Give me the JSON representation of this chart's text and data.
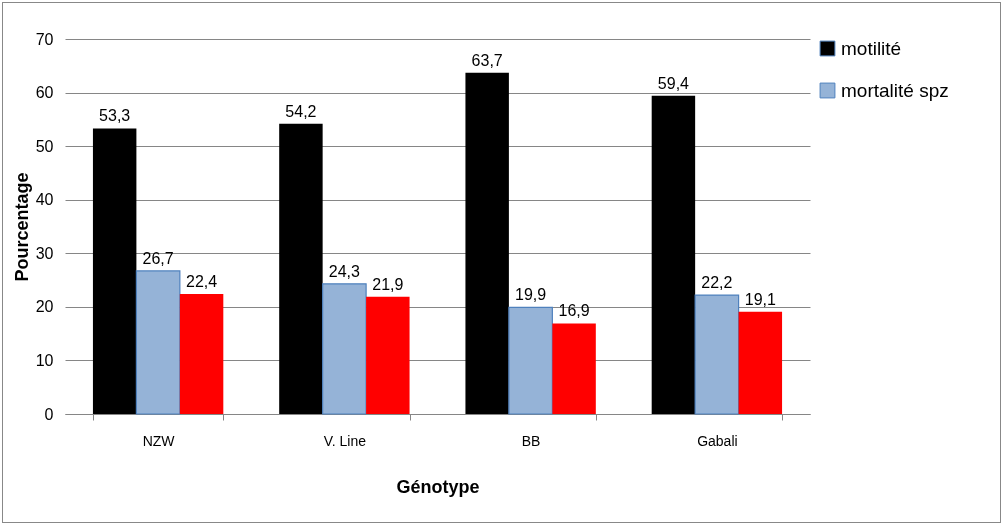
{
  "chart_data": {
    "type": "bar",
    "xlabel": "Génotype",
    "ylabel": "Pourcentage",
    "categories": [
      "NZW",
      "V. Line",
      "BB",
      "Gabali"
    ],
    "series": [
      {
        "name": "motilité",
        "color": "#000000",
        "values": [
          53.3,
          54.2,
          63.7,
          59.4
        ],
        "value_labels": [
          "53,3",
          "54,2",
          "63,7",
          "59,4"
        ]
      },
      {
        "name": "mortalité spz",
        "color": "#95b3d7",
        "values": [
          26.7,
          24.3,
          19.9,
          22.2
        ],
        "value_labels": [
          "26,7",
          "24,3",
          "19,9",
          "22,2"
        ]
      },
      {
        "color": "#ff0000",
        "values": [
          22.4,
          21.9,
          16.9,
          19.1
        ],
        "value_labels": [
          "22,4",
          "21,9",
          "16,9",
          "19,1"
        ]
      }
    ],
    "ylim": [
      0,
      70
    ],
    "yticks": [
      0,
      10,
      20,
      30,
      40,
      50,
      60,
      70
    ],
    "grid": "y",
    "legend": "right"
  }
}
